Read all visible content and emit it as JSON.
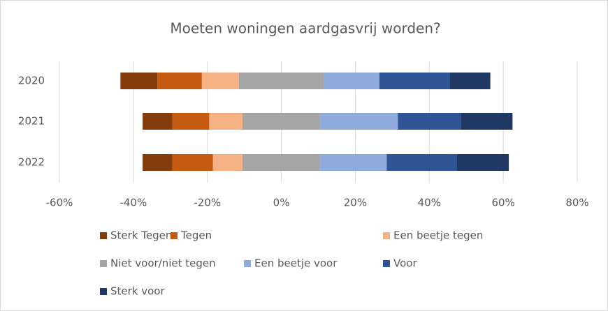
{
  "chart_data": {
    "type": "diverging-bar",
    "title": "Moeten woningen aardgasvrij worden?",
    "categories": [
      "2020",
      "2021",
      "2022"
    ],
    "series": [
      {
        "name": "Sterk Tegen",
        "color": "#843c0c",
        "side": "negative",
        "values": [
          10,
          8,
          8
        ]
      },
      {
        "name": "Tegen",
        "color": "#c55a11",
        "side": "negative",
        "values": [
          12,
          10,
          11
        ]
      },
      {
        "name": "Een beetje tegen",
        "color": "#f4b183",
        "side": "negative",
        "values": [
          10,
          9,
          8
        ]
      },
      {
        "name": "Niet voor/niet tegen",
        "color": "#a5a5a5",
        "side": "neutral",
        "values": [
          23,
          21,
          21
        ]
      },
      {
        "name": "Een beetje voor",
        "color": "#8faadc",
        "side": "positive",
        "values": [
          15,
          21,
          18
        ]
      },
      {
        "name": "Voor",
        "color": "#2f5597",
        "side": "positive",
        "values": [
          19,
          17,
          19
        ]
      },
      {
        "name": "Sterk voor",
        "color": "#1f3864",
        "side": "positive",
        "values": [
          11,
          14,
          14
        ]
      }
    ],
    "xlim": [
      -60,
      80
    ],
    "xticks": [
      {
        "value": -60,
        "label": "-60%"
      },
      {
        "value": -40,
        "label": "-40%"
      },
      {
        "value": -20,
        "label": "-20%"
      },
      {
        "value": 0,
        "label": "0%"
      },
      {
        "value": 20,
        "label": "20%"
      },
      {
        "value": 40,
        "label": "40%"
      },
      {
        "value": 60,
        "label": "60%"
      },
      {
        "value": 80,
        "label": "80%"
      }
    ],
    "grid": true
  }
}
